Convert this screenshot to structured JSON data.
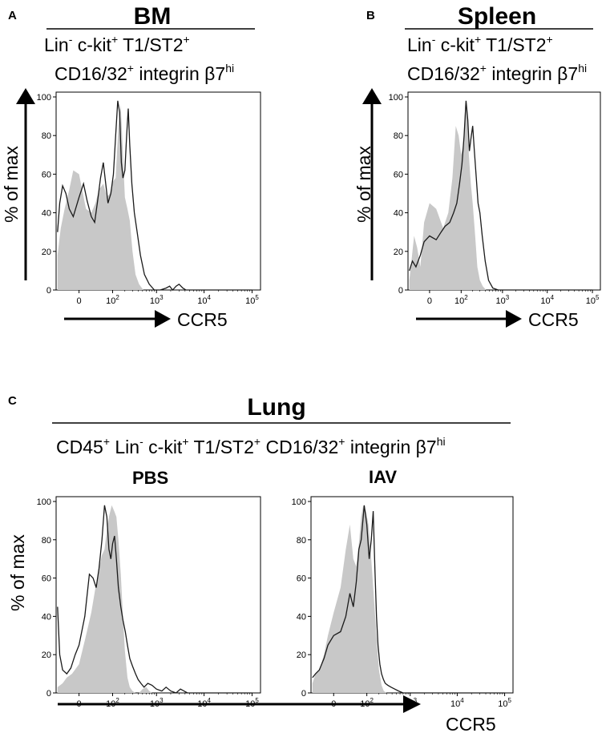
{
  "panels": {
    "A": {
      "letter": "A",
      "tissue": "BM"
    },
    "B": {
      "letter": "B",
      "tissue": "Spleen"
    },
    "C": {
      "letter": "C",
      "tissue": "Lung",
      "conditions": [
        "PBS",
        "IAV"
      ]
    }
  },
  "gate_labels": {
    "lin": "Lin",
    "lin_sup": "-",
    "ckit": " c-kit",
    "ckit_sup": "+",
    "t1st2": " T1/ST2",
    "t1st2_sup": "+",
    "cd1632": "CD16/32",
    "cd1632_sup": "+",
    "integrin": " integrin β7",
    "integrin_sup": "hi",
    "cd45": "CD45",
    "cd45_sup": "+"
  },
  "axis": {
    "ylabel": "% of max",
    "xlabel": "CCR5",
    "yticks": [
      "0",
      "20",
      "40",
      "60",
      "80",
      "100"
    ],
    "xticks": [
      {
        "base": "0",
        "exp": ""
      },
      {
        "base": "10",
        "exp": "2"
      },
      {
        "base": "10",
        "exp": "3"
      },
      {
        "base": "10",
        "exp": "4"
      },
      {
        "base": "10",
        "exp": "5"
      }
    ]
  },
  "colors": {
    "filled": "#c8c8c8",
    "outline": "#1a1a1a"
  },
  "chart_data": [
    {
      "type": "area",
      "panel": "A",
      "title": "BM",
      "xlabel": "CCR5",
      "ylabel": "% of max",
      "ylim": [
        0,
        100
      ],
      "x_scale": "biexponential",
      "series": [
        {
          "style": "filled-gray",
          "x": [
            -45,
            -35,
            -25,
            -15,
            -8,
            0,
            10,
            20,
            30,
            40,
            55,
            70,
            85,
            100,
            120,
            140,
            160,
            180,
            200,
            230,
            260,
            300,
            350,
            420,
            520,
            700
          ],
          "y": [
            18,
            32,
            42,
            52,
            62,
            60,
            42,
            40,
            45,
            52,
            55,
            48,
            50,
            56,
            58,
            85,
            96,
            70,
            48,
            42,
            36,
            20,
            8,
            3,
            0,
            0
          ]
        },
        {
          "style": "outline",
          "x": [
            -45,
            -38,
            -30,
            -22,
            -15,
            -8,
            0,
            6,
            12,
            20,
            28,
            35,
            45,
            55,
            65,
            75,
            90,
            105,
            120,
            135,
            150,
            165,
            180,
            200,
            220,
            240,
            260,
            290,
            330,
            380,
            450,
            550,
            700,
            900,
            1200,
            1600,
            1900,
            2200,
            2600,
            3000,
            3600,
            4200,
            5000,
            100000
          ],
          "y": [
            30,
            45,
            54,
            50,
            42,
            38,
            48,
            55,
            46,
            38,
            35,
            45,
            58,
            66,
            55,
            45,
            50,
            60,
            80,
            98,
            92,
            66,
            58,
            62,
            80,
            94,
            75,
            55,
            40,
            30,
            18,
            8,
            3,
            0,
            0,
            1,
            2,
            0,
            2,
            3,
            1,
            0,
            0,
            0
          ]
        }
      ]
    },
    {
      "type": "area",
      "panel": "B",
      "title": "Spleen",
      "xlabel": "CCR5",
      "ylabel": "% of max",
      "ylim": [
        0,
        100
      ],
      "x_scale": "biexponential",
      "series": [
        {
          "style": "filled-gray",
          "x": [
            -45,
            -38,
            -30,
            -22,
            -15,
            -8,
            0,
            10,
            25,
            40,
            55,
            70,
            85,
            100,
            115,
            130,
            145,
            160,
            180,
            200,
            230,
            260,
            300,
            350,
            420,
            520
          ],
          "y": [
            5,
            15,
            28,
            22,
            12,
            35,
            45,
            42,
            32,
            40,
            58,
            85,
            80,
            70,
            75,
            98,
            92,
            70,
            55,
            45,
            28,
            12,
            5,
            2,
            0,
            0
          ]
        },
        {
          "style": "outline",
          "x": [
            -45,
            -35,
            -25,
            -15,
            -8,
            0,
            10,
            20,
            30,
            45,
            60,
            75,
            90,
            105,
            120,
            135,
            150,
            165,
            180,
            200,
            220,
            245,
            270,
            300,
            340,
            400,
            480,
            600,
            800,
            100000
          ],
          "y": [
            10,
            15,
            12,
            18,
            25,
            28,
            26,
            30,
            33,
            35,
            40,
            45,
            55,
            65,
            80,
            98,
            88,
            72,
            78,
            85,
            72,
            58,
            45,
            40,
            28,
            15,
            5,
            1,
            0,
            0
          ]
        }
      ]
    },
    {
      "type": "area",
      "panel": "C-PBS",
      "title": "PBS",
      "xlabel": "CCR5",
      "ylabel": "% of max",
      "ylim": [
        0,
        100
      ],
      "x_scale": "biexponential",
      "series": [
        {
          "style": "filled-gray",
          "x": [
            -45,
            -30,
            -20,
            -10,
            0,
            10,
            20,
            30,
            40,
            50,
            60,
            70,
            80,
            95,
            110,
            125,
            140,
            160,
            180,
            200,
            230,
            260,
            300,
            350,
            420,
            500,
            600,
            700,
            800
          ],
          "y": [
            3,
            5,
            8,
            10,
            15,
            30,
            42,
            55,
            65,
            72,
            75,
            85,
            92,
            98,
            95,
            92,
            80,
            62,
            40,
            22,
            8,
            3,
            1,
            0,
            0,
            2,
            3,
            1,
            0
          ]
        },
        {
          "style": "outline",
          "x": [
            -45,
            -38,
            -30,
            -20,
            -12,
            -5,
            0,
            8,
            16,
            24,
            32,
            40,
            50,
            60,
            70,
            80,
            90,
            100,
            112,
            125,
            140,
            160,
            180,
            205,
            230,
            260,
            300,
            350,
            400,
            460,
            540,
            650,
            800,
            1000,
            1300,
            1600,
            2000,
            2600,
            3200,
            3800,
            4500,
            100000
          ],
          "y": [
            45,
            20,
            12,
            10,
            13,
            20,
            25,
            40,
            62,
            60,
            55,
            65,
            80,
            98,
            92,
            75,
            70,
            78,
            82,
            70,
            55,
            45,
            38,
            32,
            25,
            18,
            14,
            10,
            7,
            5,
            3,
            5,
            4,
            2,
            1,
            3,
            1,
            0,
            2,
            1,
            0,
            0
          ]
        }
      ]
    },
    {
      "type": "area",
      "panel": "C-IAV",
      "title": "IAV",
      "xlabel": "CCR5",
      "ylabel": "% of max",
      "ylim": [
        0,
        100
      ],
      "x_scale": "biexponential",
      "series": [
        {
          "style": "filled-gray",
          "x": [
            -45,
            -35,
            -25,
            -15,
            -8,
            0,
            10,
            20,
            30,
            40,
            50,
            60,
            70,
            80,
            95,
            110,
            125,
            140,
            160,
            180,
            200,
            230,
            260,
            300,
            350,
            420
          ],
          "y": [
            5,
            10,
            12,
            20,
            30,
            42,
            55,
            75,
            88,
            70,
            66,
            78,
            92,
            98,
            95,
            88,
            75,
            60,
            42,
            25,
            12,
            4,
            1,
            0,
            0,
            0
          ]
        },
        {
          "style": "outline",
          "x": [
            -45,
            -35,
            -25,
            -15,
            -8,
            0,
            10,
            20,
            30,
            40,
            50,
            60,
            70,
            85,
            100,
            115,
            130,
            145,
            160,
            175,
            190,
            210,
            230,
            255,
            280,
            320,
            380,
            460,
            560,
            700,
            900,
            100000
          ],
          "y": [
            8,
            10,
            12,
            18,
            25,
            30,
            32,
            40,
            52,
            45,
            58,
            75,
            80,
            98,
            88,
            70,
            80,
            95,
            65,
            40,
            25,
            15,
            10,
            7,
            5,
            4,
            3,
            2,
            1,
            0,
            0,
            0
          ]
        }
      ]
    }
  ]
}
